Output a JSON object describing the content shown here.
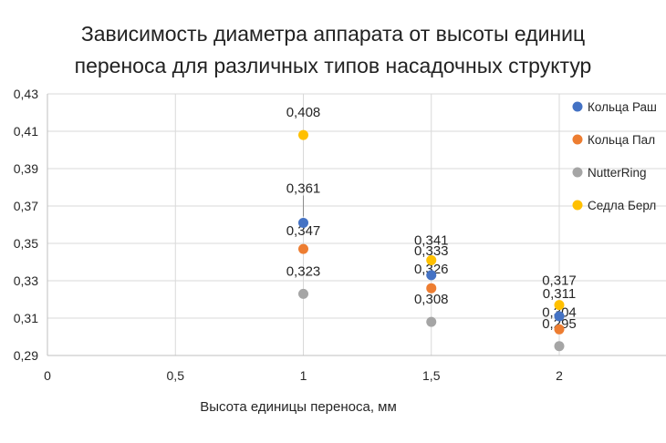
{
  "chart_data": {
    "type": "scatter",
    "title_lines": [
      "Зависимость диаметра аппарата от высоты единиц",
      "переноса для различных типов насадочных структур"
    ],
    "xlabel": "Высота единицы переноса, мм",
    "ylabel": "",
    "xlim": [
      0,
      2.5
    ],
    "ylim": [
      0.29,
      0.43
    ],
    "x_ticks": [
      0,
      0.5,
      1,
      1.5,
      2
    ],
    "x_tick_labels": [
      "0",
      "0,5",
      "1",
      "1,5",
      "2"
    ],
    "y_ticks": [
      0.29,
      0.31,
      0.33,
      0.35,
      0.37,
      0.39,
      0.41,
      0.43
    ],
    "y_tick_labels": [
      "0,29",
      "0,31",
      "0,33",
      "0,35",
      "0,37",
      "0,39",
      "0,41",
      "0,43"
    ],
    "grid": true,
    "legend_position": "right",
    "series": [
      {
        "name": "Кольца Раш",
        "color": "#4472c4",
        "points": [
          {
            "x": 1,
            "y": 0.361,
            "label": "0,361"
          },
          {
            "x": 1.5,
            "y": 0.333,
            "label": "0,333"
          },
          {
            "x": 2,
            "y": 0.311,
            "label": "0,311"
          }
        ]
      },
      {
        "name": "Кольца Пал",
        "color": "#ed7d31",
        "points": [
          {
            "x": 1,
            "y": 0.347,
            "label": "0,347"
          },
          {
            "x": 1.5,
            "y": 0.326,
            "label": "0,326"
          },
          {
            "x": 2,
            "y": 0.304,
            "label": "0,304"
          }
        ]
      },
      {
        "name": "NutterRing",
        "color": "#a5a5a5",
        "points": [
          {
            "x": 1,
            "y": 0.323,
            "label": "0,323"
          },
          {
            "x": 1.5,
            "y": 0.308,
            "label": "0,308"
          },
          {
            "x": 2,
            "y": 0.295,
            "label": "0,295"
          }
        ]
      },
      {
        "name": "Седла Берл",
        "color": "#ffc000",
        "points": [
          {
            "x": 1,
            "y": 0.408,
            "label": "0,408"
          },
          {
            "x": 1.5,
            "y": 0.341,
            "label": "0,341"
          },
          {
            "x": 2,
            "y": 0.317,
            "label": "0,317"
          }
        ]
      }
    ]
  }
}
